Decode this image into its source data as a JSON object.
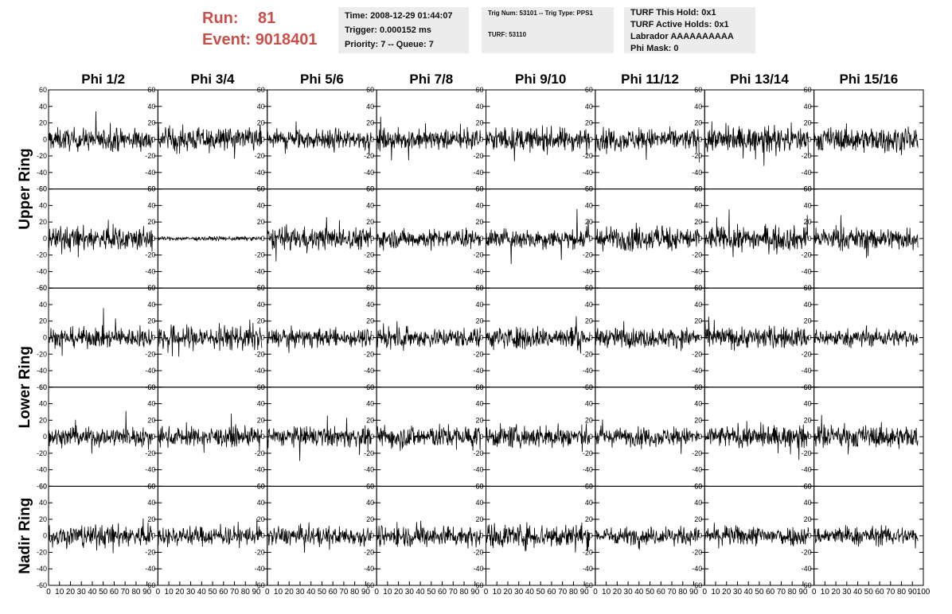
{
  "header": {
    "run_label": "Run:",
    "run_value": "81",
    "event_label": "Event:",
    "event_value": "9018401",
    "info1": [
      "Time: 2008-12-29 01:44:07",
      "Trigger: 0.000152 ms",
      "Priority: 7 -- Queue: 7"
    ],
    "info2_line1": "Trig Num: 53101 -- Trig Type: PPS1",
    "info2_line2": "TURF: 53110",
    "info3": [
      "TURF This Hold: 0x1",
      "TURF Active Holds: 0x1",
      "Labrador AAAAAAAAAA",
      "Phi Mask: 0"
    ],
    "accent_color": "#c9504a",
    "box_color": "#ececec"
  },
  "chart_data": {
    "type": "line",
    "columns": [
      "Phi 1/2",
      "Phi 3/4",
      "Phi 5/6",
      "Phi 7/8",
      "Phi 9/10",
      "Phi 11/12",
      "Phi 13/14",
      "Phi 15/16"
    ],
    "row_labels": [
      {
        "text": "Upper Ring",
        "rows": [
          0,
          1
        ]
      },
      {
        "text": "Lower Ring",
        "rows": [
          2,
          3
        ]
      },
      {
        "text": "Nadir Ring",
        "rows": [
          4
        ]
      }
    ],
    "ylim": [
      -60,
      60
    ],
    "yticks": [
      -60,
      -40,
      -20,
      0,
      20,
      40,
      60
    ],
    "xlim": [
      0,
      100
    ],
    "xticks": [
      0,
      10,
      20,
      30,
      40,
      50,
      60,
      70,
      80,
      90,
      100
    ],
    "samples_per_trace": 260,
    "trace_x_end": 95,
    "typical_amplitude": 10,
    "quiet_channel": {
      "row": 1,
      "col": 1,
      "amplitude": 2
    },
    "line_color": "#000000"
  }
}
